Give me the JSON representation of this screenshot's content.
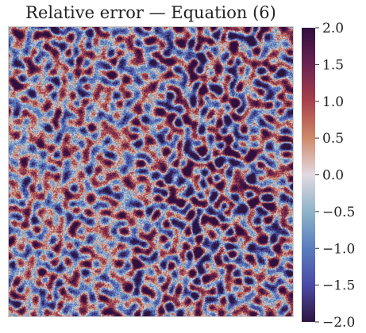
{
  "chart_data": {
    "type": "heatmap",
    "title": "Relative error — Equation (6)",
    "xlabel": "",
    "ylabel": "",
    "grid": false,
    "colorbar": {
      "position": "right",
      "vmin": -2.0,
      "vmax": 2.0,
      "colormap": "diverging (twilight_shifted)",
      "ticks": [
        2.0,
        1.5,
        1.0,
        0.5,
        0.0,
        -0.5,
        -1.0,
        -1.5,
        -2.0
      ],
      "tick_labels": [
        "2.0",
        "1.5",
        "1.0",
        "0.5",
        "0.0",
        "−0.5",
        "−1.0",
        "−1.5",
        "−2.0"
      ],
      "color_stops": [
        {
          "value": 2.0,
          "color": "#2f0f3e"
        },
        {
          "value": 1.5,
          "color": "#6b2350"
        },
        {
          "value": 1.0,
          "color": "#a7414c"
        },
        {
          "value": 0.5,
          "color": "#cf8a6a"
        },
        {
          "value": 0.0,
          "color": "#e2d9e2"
        },
        {
          "value": -0.5,
          "color": "#8fb4c8"
        },
        {
          "value": -1.0,
          "color": "#5a7dbf"
        },
        {
          "value": -1.5,
          "color": "#4b4aa5"
        },
        {
          "value": -2.0,
          "color": "#2e1540"
        }
      ]
    },
    "field": {
      "description_kind": "dense noisy field",
      "value_range": [
        -2.0,
        2.0
      ],
      "seed": 6
    }
  }
}
